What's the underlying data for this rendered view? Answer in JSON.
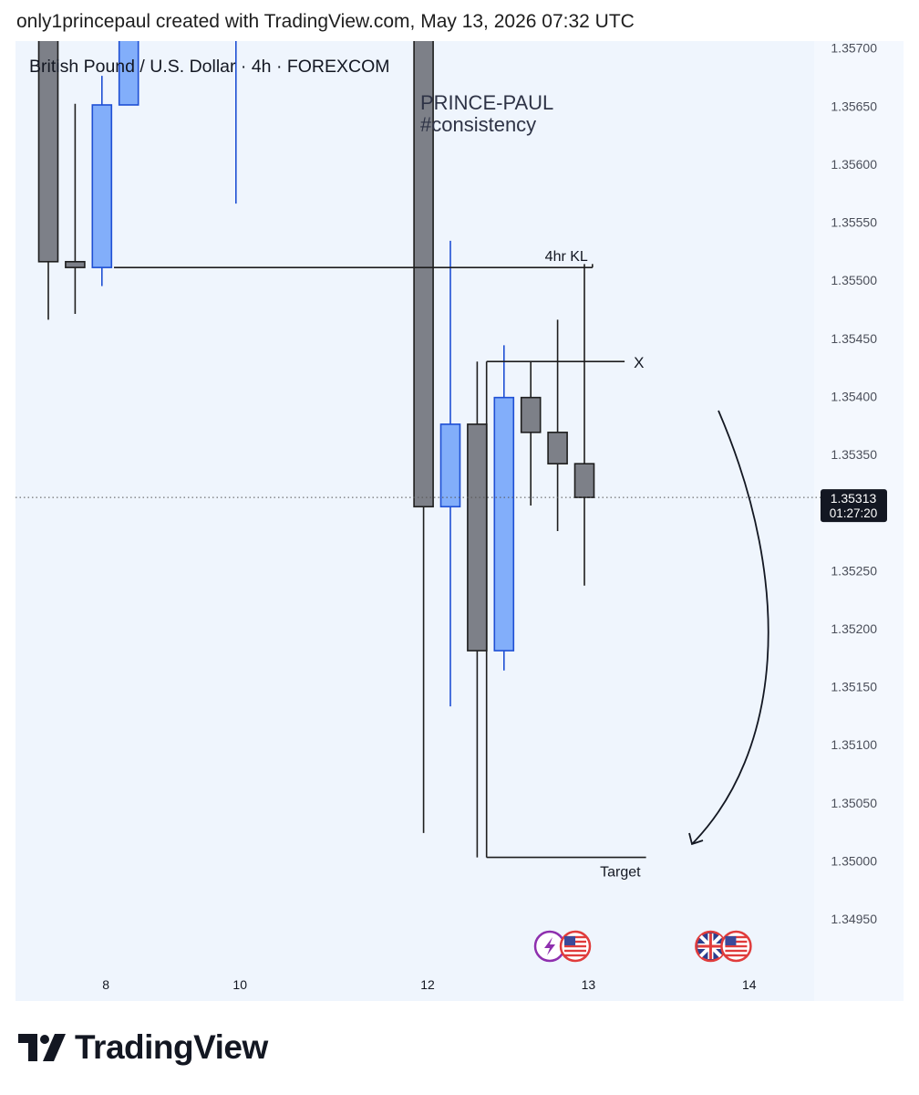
{
  "header": {
    "text": "only1princepaul created with TradingView.com, May 13, 2026 07:32 UTC"
  },
  "logo": {
    "text": "TradingView"
  },
  "colors": {
    "bullish": "#82aefa",
    "bearish": "#7d8088",
    "wick": "#1e1e1e",
    "bullish_wick": "#1e4fd4",
    "background": "#eff5fd"
  },
  "chart_data": {
    "type": "candlestick",
    "title": "British Pound / U.S. Dollar · 4h · FOREXCOM",
    "watermark": [
      "PRINCE-PAUL",
      "#consistency"
    ],
    "ylim": [
      1.34906,
      1.35706
    ],
    "yticks": [
      "1.35700",
      "1.35650",
      "1.35600",
      "1.35550",
      "1.35500",
      "1.35450",
      "1.35400",
      "1.35350",
      "1.35250",
      "1.35200",
      "1.35150",
      "1.35100",
      "1.35050",
      "1.35000",
      "1.34950"
    ],
    "xticks": [
      {
        "label": "8",
        "idx": 2.15
      },
      {
        "label": "10",
        "idx": 7.15
      },
      {
        "label": "12",
        "idx": 14.15
      },
      {
        "label": "13",
        "idx": 20.15
      },
      {
        "label": "14",
        "idx": 26.15
      }
    ],
    "candles": [
      {
        "idx": 0,
        "open": 1.35709,
        "high": 1.3572,
        "low": 1.35466,
        "close": 1.35516
      },
      {
        "idx": 1,
        "open": 1.35516,
        "high": 1.35652,
        "low": 1.35471,
        "close": 1.35511
      },
      {
        "idx": 2,
        "open": 1.35511,
        "high": 1.35676,
        "low": 1.35495,
        "close": 1.35651
      },
      {
        "idx": 3,
        "open": 1.35651,
        "high": 1.3572,
        "low": 1.35651,
        "close": 1.35709
      },
      {
        "idx": 7,
        "open": 1.3571,
        "high": 1.3572,
        "low": 1.35566,
        "close": 1.3571
      },
      {
        "idx": 14,
        "open": 1.35709,
        "high": 1.3572,
        "low": 1.35024,
        "close": 1.35305
      },
      {
        "idx": 15,
        "open": 1.35305,
        "high": 1.35534,
        "low": 1.35133,
        "close": 1.35376
      },
      {
        "idx": 16,
        "open": 1.35376,
        "high": 1.3543,
        "low": 1.35003,
        "close": 1.35181
      },
      {
        "idx": 17,
        "open": 1.35181,
        "high": 1.35444,
        "low": 1.35164,
        "close": 1.35399
      },
      {
        "idx": 18,
        "open": 1.35399,
        "high": 1.3543,
        "low": 1.35306,
        "close": 1.35369
      },
      {
        "idx": 19,
        "open": 1.35369,
        "high": 1.35466,
        "low": 1.35284,
        "close": 1.35342
      },
      {
        "idx": 20,
        "open": 1.35342,
        "high": 1.35514,
        "low": 1.35237,
        "close": 1.35313
      }
    ],
    "current_price": {
      "label": "1.35313",
      "countdown": "01:27:20",
      "value": 1.35313
    },
    "annotations": {
      "kl": {
        "text": "4hr KL",
        "price": 1.35511,
        "from_idx": 2.45,
        "to_idx": 20.3
      },
      "x": {
        "text": "X",
        "price": 1.3543,
        "from_idx": 16.35,
        "to_idx": 21.5
      },
      "target": {
        "text": "Target",
        "price": 1.35003,
        "from_idx": 16.35,
        "to_idx": 22.3
      }
    },
    "events": [
      {
        "idx": 19.15,
        "icons": [
          "lightning-icon",
          "us-flag-icon"
        ]
      },
      {
        "idx": 25.15,
        "icons": [
          "uk-flag-icon",
          "us-flag-icon"
        ]
      }
    ]
  }
}
